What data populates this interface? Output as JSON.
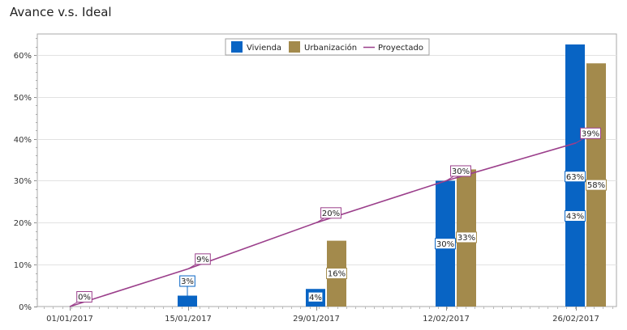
{
  "chart_data": {
    "type": "bar",
    "title": "Avance v.s. Ideal",
    "x": [
      "01/01/2017",
      "15/01/2017",
      "29/01/2017",
      "12/02/2017",
      "26/02/2017"
    ],
    "ylim": [
      0,
      0.65
    ],
    "yticks": [
      "0%",
      "10%",
      "20%",
      "30%",
      "40%",
      "50%",
      "60%"
    ],
    "grid": true,
    "legend": "top-center",
    "series": [
      {
        "name": "Vivienda",
        "kind": "bar",
        "color": "#0864c4",
        "points": [
          {
            "x": "15/01/2017",
            "value": 0.026,
            "label": "3%"
          },
          {
            "x": "29/01/2017",
            "value": 0.042,
            "label": "4%"
          },
          {
            "x": "12/02/2017",
            "value": 0.3,
            "label": "30%"
          },
          {
            "x": "26/02/2017",
            "value": 0.625,
            "label": "63%"
          }
        ]
      },
      {
        "name": "Urbanización",
        "kind": "bar",
        "color": "#a38a4c",
        "points": [
          {
            "x": "29/01/2017",
            "value": 0.157,
            "label": "16%"
          },
          {
            "x": "12/02/2017",
            "value": 0.327,
            "label": "33%"
          },
          {
            "x": "26/02/2017",
            "value": 0.58,
            "label": "58%"
          }
        ]
      },
      {
        "name": "Proyectado",
        "kind": "line",
        "color": "#9b3f8b",
        "points": [
          {
            "x": "01/01/2017",
            "value": 0.0,
            "label": "0%"
          },
          {
            "x": "15/01/2017",
            "value": 0.09,
            "label": "9%"
          },
          {
            "x": "29/01/2017",
            "value": 0.2,
            "label": "20%"
          },
          {
            "x": "12/02/2017",
            "value": 0.3,
            "label": "30%"
          },
          {
            "x": "26/02/2017",
            "value": 0.39,
            "label": "39%"
          }
        ]
      }
    ],
    "annotations": [
      {
        "x": "26/02/2017",
        "value": 0.43,
        "label": "43%",
        "color": "#0864c4"
      }
    ]
  }
}
